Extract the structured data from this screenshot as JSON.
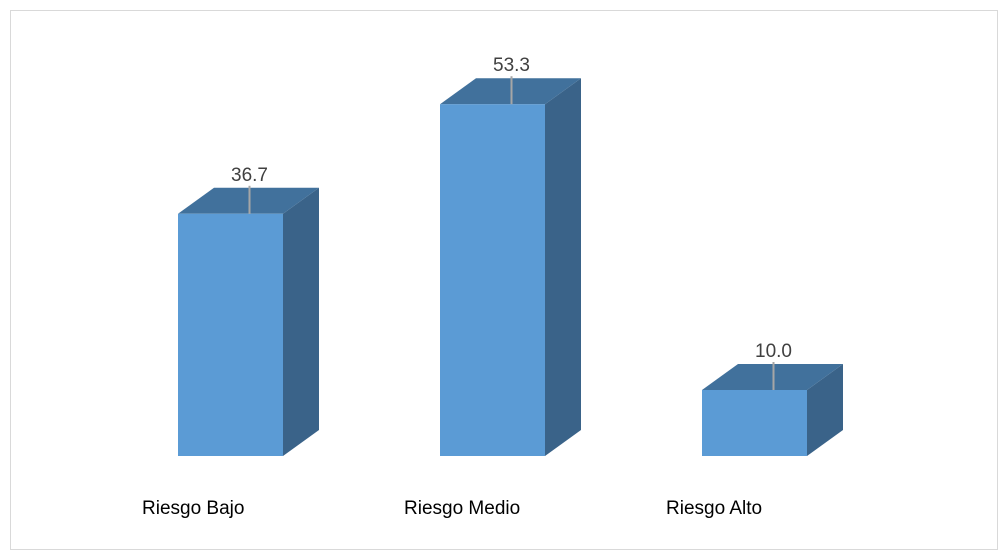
{
  "chart_data": {
    "type": "bar",
    "style": "3d-column",
    "categories": [
      "Riesgo Bajo",
      "Riesgo Medio",
      "Riesgo Alto"
    ],
    "values": [
      36.7,
      53.3,
      10.0
    ],
    "value_labels": [
      "36.7",
      "53.3",
      "10.0"
    ],
    "title": "",
    "xlabel": "",
    "ylabel": "",
    "ylim": [
      0,
      60
    ],
    "grid": false,
    "legend": "none",
    "colors": {
      "front": "#5b9bd5",
      "top": "#41719c",
      "side": "#3a6389",
      "leader": "#a6a6a6"
    }
  }
}
